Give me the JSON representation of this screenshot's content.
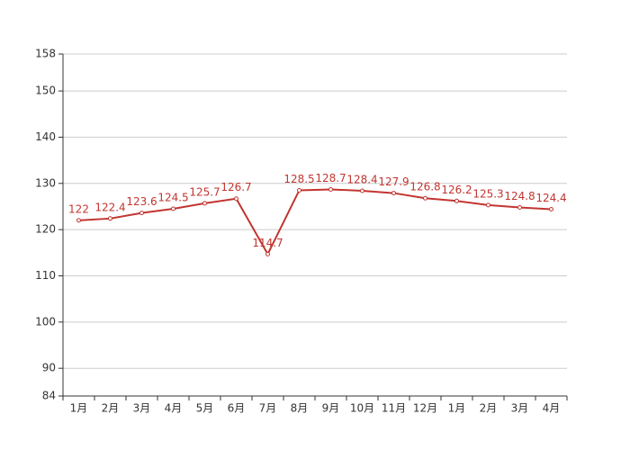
{
  "chart_data": {
    "type": "line",
    "categories": [
      "1月",
      "2月",
      "3月",
      "4月",
      "5月",
      "6月",
      "7月",
      "8月",
      "9月",
      "10月",
      "11月",
      "12月",
      "1月",
      "2月",
      "3月",
      "4月"
    ],
    "series": [
      {
        "color": "#c23531",
        "values": [
          122,
          122.4,
          123.6,
          124.5,
          125.7,
          126.7,
          114.7,
          128.5,
          128.7,
          128.4,
          127.9,
          126.8,
          126.2,
          125.3,
          124.8,
          124.4
        ]
      }
    ],
    "ylim": [
      84,
      158
    ],
    "yticks": [
      84,
      90,
      100,
      110,
      120,
      130,
      140,
      150,
      158
    ],
    "grid": true
  }
}
